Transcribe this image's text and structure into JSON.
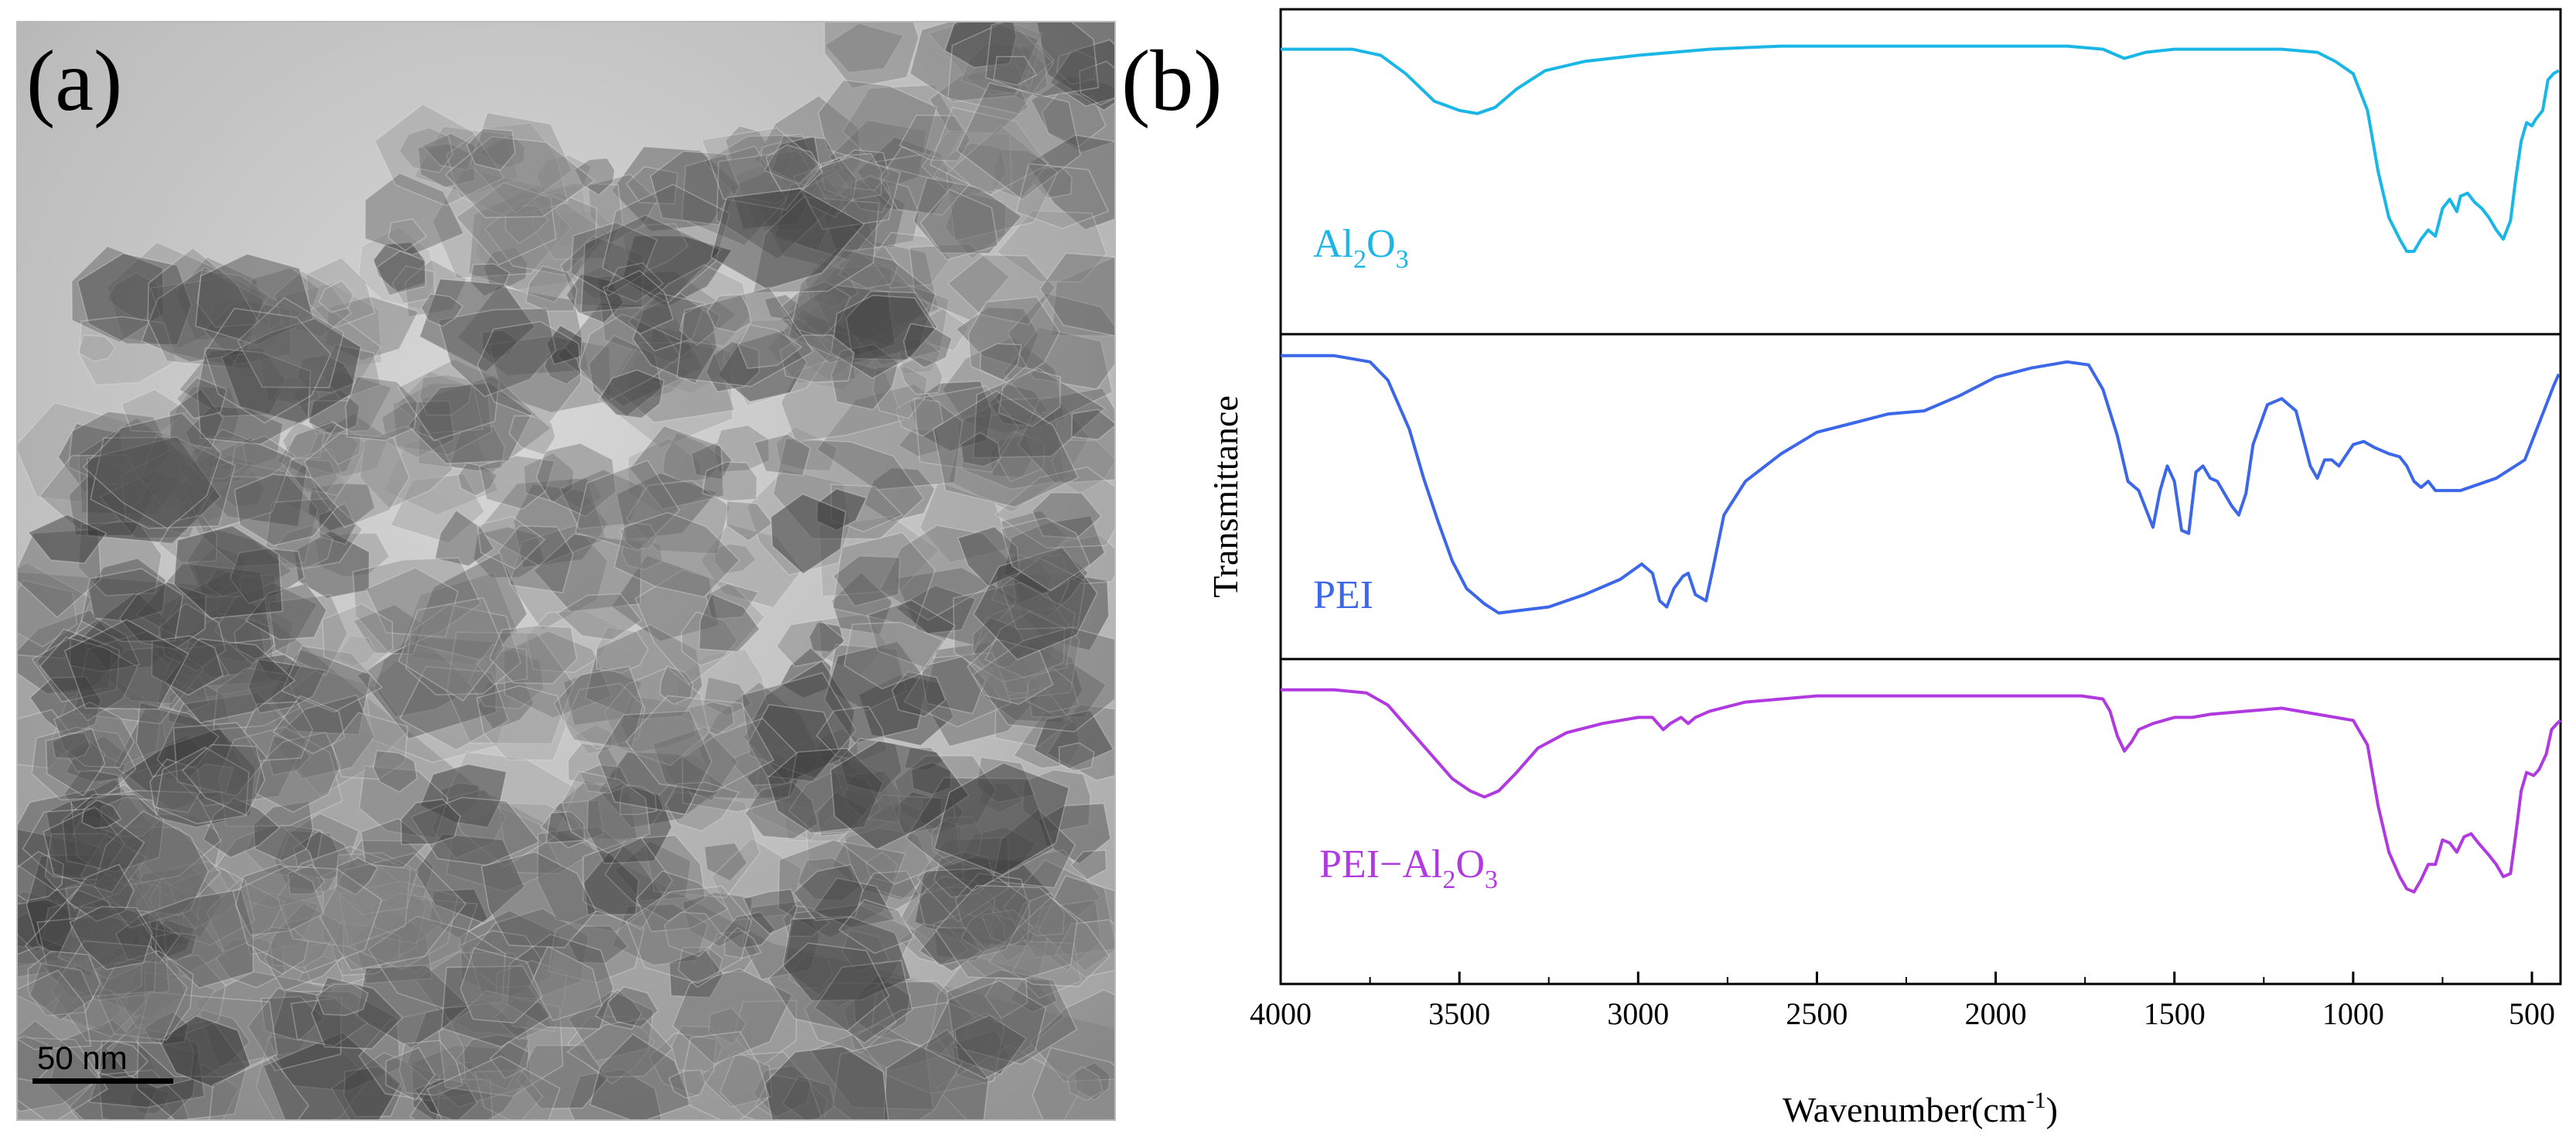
{
  "panels": {
    "a": {
      "letter": "(a)",
      "scale_bar": "50 nm"
    },
    "b": {
      "letter": "(b)"
    }
  },
  "chart_data": {
    "type": "line",
    "title": "",
    "xlabel_prefix": "Wavenumber(cm",
    "xlabel_sup": "-1",
    "xlabel_suffix": ")",
    "ylabel": "Transmittance",
    "xlim": [
      4000,
      420
    ],
    "x_reversed": true,
    "ylim": [
      0,
      1
    ],
    "xticks": [
      4000,
      3500,
      3000,
      2500,
      2000,
      1500,
      1000,
      500
    ],
    "series": [
      {
        "name": "Al2O3",
        "label": {
          "main1": "Al",
          "sub1": "2",
          "main2": "O",
          "sub2": "3"
        },
        "color": "#1ab6e6",
        "points": [
          [
            4000,
            0.9
          ],
          [
            3900,
            0.9
          ],
          [
            3800,
            0.9
          ],
          [
            3720,
            0.88
          ],
          [
            3650,
            0.82
          ],
          [
            3570,
            0.73
          ],
          [
            3500,
            0.7
          ],
          [
            3450,
            0.69
          ],
          [
            3400,
            0.71
          ],
          [
            3340,
            0.77
          ],
          [
            3260,
            0.83
          ],
          [
            3150,
            0.86
          ],
          [
            3000,
            0.88
          ],
          [
            2800,
            0.9
          ],
          [
            2600,
            0.91
          ],
          [
            2400,
            0.91
          ],
          [
            2200,
            0.91
          ],
          [
            2000,
            0.91
          ],
          [
            1800,
            0.91
          ],
          [
            1700,
            0.9
          ],
          [
            1640,
            0.87
          ],
          [
            1580,
            0.89
          ],
          [
            1500,
            0.9
          ],
          [
            1300,
            0.9
          ],
          [
            1200,
            0.9
          ],
          [
            1100,
            0.89
          ],
          [
            1050,
            0.86
          ],
          [
            1000,
            0.82
          ],
          [
            960,
            0.7
          ],
          [
            930,
            0.5
          ],
          [
            900,
            0.35
          ],
          [
            870,
            0.28
          ],
          [
            850,
            0.24
          ],
          [
            830,
            0.24
          ],
          [
            810,
            0.28
          ],
          [
            790,
            0.31
          ],
          [
            770,
            0.29
          ],
          [
            750,
            0.38
          ],
          [
            730,
            0.41
          ],
          [
            710,
            0.37
          ],
          [
            700,
            0.42
          ],
          [
            680,
            0.43
          ],
          [
            660,
            0.4
          ],
          [
            640,
            0.38
          ],
          [
            620,
            0.35
          ],
          [
            600,
            0.31
          ],
          [
            580,
            0.28
          ],
          [
            560,
            0.34
          ],
          [
            545,
            0.48
          ],
          [
            530,
            0.6
          ],
          [
            515,
            0.66
          ],
          [
            500,
            0.65
          ],
          [
            490,
            0.67
          ],
          [
            470,
            0.7
          ],
          [
            455,
            0.8
          ],
          [
            440,
            0.82
          ],
          [
            425,
            0.83
          ]
        ]
      },
      {
        "name": "PEI",
        "label": {
          "text": "PEI"
        },
        "color": "#3b67e8",
        "points": [
          [
            4000,
            0.96
          ],
          [
            3850,
            0.96
          ],
          [
            3750,
            0.94
          ],
          [
            3700,
            0.88
          ],
          [
            3640,
            0.72
          ],
          [
            3600,
            0.56
          ],
          [
            3560,
            0.42
          ],
          [
            3520,
            0.29
          ],
          [
            3480,
            0.2
          ],
          [
            3430,
            0.15
          ],
          [
            3390,
            0.12
          ],
          [
            3320,
            0.13
          ],
          [
            3250,
            0.14
          ],
          [
            3150,
            0.18
          ],
          [
            3050,
            0.23
          ],
          [
            2990,
            0.28
          ],
          [
            2960,
            0.25
          ],
          [
            2940,
            0.16
          ],
          [
            2920,
            0.14
          ],
          [
            2900,
            0.2
          ],
          [
            2875,
            0.24
          ],
          [
            2860,
            0.25
          ],
          [
            2840,
            0.18
          ],
          [
            2810,
            0.16
          ],
          [
            2790,
            0.27
          ],
          [
            2760,
            0.44
          ],
          [
            2700,
            0.55
          ],
          [
            2600,
            0.64
          ],
          [
            2500,
            0.71
          ],
          [
            2400,
            0.74
          ],
          [
            2300,
            0.77
          ],
          [
            2200,
            0.78
          ],
          [
            2100,
            0.83
          ],
          [
            2000,
            0.89
          ],
          [
            1900,
            0.92
          ],
          [
            1800,
            0.94
          ],
          [
            1740,
            0.93
          ],
          [
            1700,
            0.85
          ],
          [
            1660,
            0.7
          ],
          [
            1630,
            0.55
          ],
          [
            1600,
            0.52
          ],
          [
            1580,
            0.46
          ],
          [
            1560,
            0.4
          ],
          [
            1540,
            0.52
          ],
          [
            1520,
            0.6
          ],
          [
            1500,
            0.55
          ],
          [
            1480,
            0.39
          ],
          [
            1460,
            0.38
          ],
          [
            1440,
            0.58
          ],
          [
            1420,
            0.6
          ],
          [
            1400,
            0.56
          ],
          [
            1380,
            0.55
          ],
          [
            1340,
            0.47
          ],
          [
            1320,
            0.44
          ],
          [
            1300,
            0.51
          ],
          [
            1280,
            0.67
          ],
          [
            1240,
            0.8
          ],
          [
            1200,
            0.82
          ],
          [
            1160,
            0.78
          ],
          [
            1120,
            0.6
          ],
          [
            1100,
            0.56
          ],
          [
            1080,
            0.62
          ],
          [
            1060,
            0.62
          ],
          [
            1040,
            0.6
          ],
          [
            1000,
            0.67
          ],
          [
            970,
            0.68
          ],
          [
            940,
            0.66
          ],
          [
            900,
            0.64
          ],
          [
            870,
            0.63
          ],
          [
            850,
            0.6
          ],
          [
            830,
            0.55
          ],
          [
            810,
            0.53
          ],
          [
            790,
            0.55
          ],
          [
            770,
            0.52
          ],
          [
            700,
            0.52
          ],
          [
            650,
            0.54
          ],
          [
            600,
            0.56
          ],
          [
            560,
            0.59
          ],
          [
            520,
            0.62
          ],
          [
            480,
            0.74
          ],
          [
            440,
            0.86
          ],
          [
            425,
            0.9
          ]
        ]
      },
      {
        "name": "PEI-Al2O3",
        "label": {
          "main0": "PEI−Al",
          "sub1": "2",
          "main2": "O",
          "sub2": "3"
        },
        "color": "#b03ae0",
        "points": [
          [
            4000,
            0.93
          ],
          [
            3850,
            0.93
          ],
          [
            3760,
            0.92
          ],
          [
            3700,
            0.88
          ],
          [
            3640,
            0.8
          ],
          [
            3580,
            0.72
          ],
          [
            3520,
            0.64
          ],
          [
            3470,
            0.6
          ],
          [
            3430,
            0.58
          ],
          [
            3390,
            0.6
          ],
          [
            3340,
            0.66
          ],
          [
            3280,
            0.74
          ],
          [
            3200,
            0.79
          ],
          [
            3100,
            0.82
          ],
          [
            3000,
            0.84
          ],
          [
            2960,
            0.84
          ],
          [
            2930,
            0.8
          ],
          [
            2910,
            0.82
          ],
          [
            2880,
            0.84
          ],
          [
            2860,
            0.82
          ],
          [
            2840,
            0.84
          ],
          [
            2800,
            0.86
          ],
          [
            2700,
            0.89
          ],
          [
            2500,
            0.91
          ],
          [
            2300,
            0.91
          ],
          [
            2100,
            0.91
          ],
          [
            1900,
            0.91
          ],
          [
            1760,
            0.91
          ],
          [
            1700,
            0.9
          ],
          [
            1680,
            0.86
          ],
          [
            1660,
            0.78
          ],
          [
            1640,
            0.73
          ],
          [
            1620,
            0.76
          ],
          [
            1600,
            0.8
          ],
          [
            1560,
            0.82
          ],
          [
            1500,
            0.84
          ],
          [
            1450,
            0.84
          ],
          [
            1400,
            0.85
          ],
          [
            1300,
            0.86
          ],
          [
            1200,
            0.87
          ],
          [
            1100,
            0.85
          ],
          [
            1000,
            0.83
          ],
          [
            960,
            0.75
          ],
          [
            930,
            0.55
          ],
          [
            900,
            0.4
          ],
          [
            870,
            0.32
          ],
          [
            850,
            0.28
          ],
          [
            830,
            0.27
          ],
          [
            810,
            0.31
          ],
          [
            790,
            0.36
          ],
          [
            770,
            0.36
          ],
          [
            750,
            0.44
          ],
          [
            730,
            0.43
          ],
          [
            710,
            0.4
          ],
          [
            690,
            0.45
          ],
          [
            670,
            0.46
          ],
          [
            650,
            0.43
          ],
          [
            620,
            0.39
          ],
          [
            600,
            0.36
          ],
          [
            580,
            0.32
          ],
          [
            560,
            0.33
          ],
          [
            545,
            0.46
          ],
          [
            530,
            0.6
          ],
          [
            515,
            0.66
          ],
          [
            495,
            0.65
          ],
          [
            480,
            0.67
          ],
          [
            460,
            0.72
          ],
          [
            445,
            0.8
          ],
          [
            430,
            0.82
          ],
          [
            420,
            0.83
          ]
        ]
      }
    ]
  }
}
